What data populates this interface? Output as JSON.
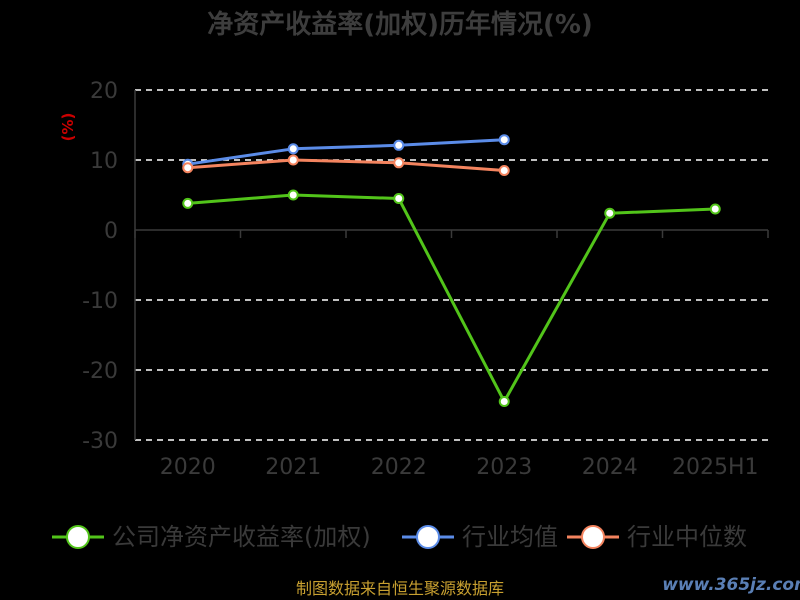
{
  "chart_data": {
    "type": "line",
    "title": "净资产收益率(加权)历年情况(%)",
    "ylabel": "(%)",
    "categories": [
      "2020",
      "2021",
      "2022",
      "2023",
      "2024",
      "2025H1"
    ],
    "ylim": [
      -30,
      20
    ],
    "yticks": [
      "20",
      "10",
      "0",
      "-10",
      "-20",
      "-30"
    ],
    "ytick_values": [
      20,
      10,
      0,
      -10,
      -20,
      -30
    ],
    "grid": true,
    "legend_position": "bottom",
    "series": [
      {
        "name": "公司净资产收益率(加权)",
        "color": "#52c41a",
        "values": [
          3.8,
          5.0,
          4.5,
          -24.5,
          2.4,
          3.0
        ]
      },
      {
        "name": "行业均值",
        "color": "#5b8ce8",
        "values": [
          9.4,
          11.6,
          12.1,
          12.9,
          null,
          null
        ]
      },
      {
        "name": "行业中位数",
        "color": "#f4845f",
        "values": [
          8.9,
          10.0,
          9.6,
          8.5,
          null,
          null
        ]
      }
    ]
  },
  "source": "制图数据来自恒生聚源数据库",
  "watermark": "www.365jz.com"
}
